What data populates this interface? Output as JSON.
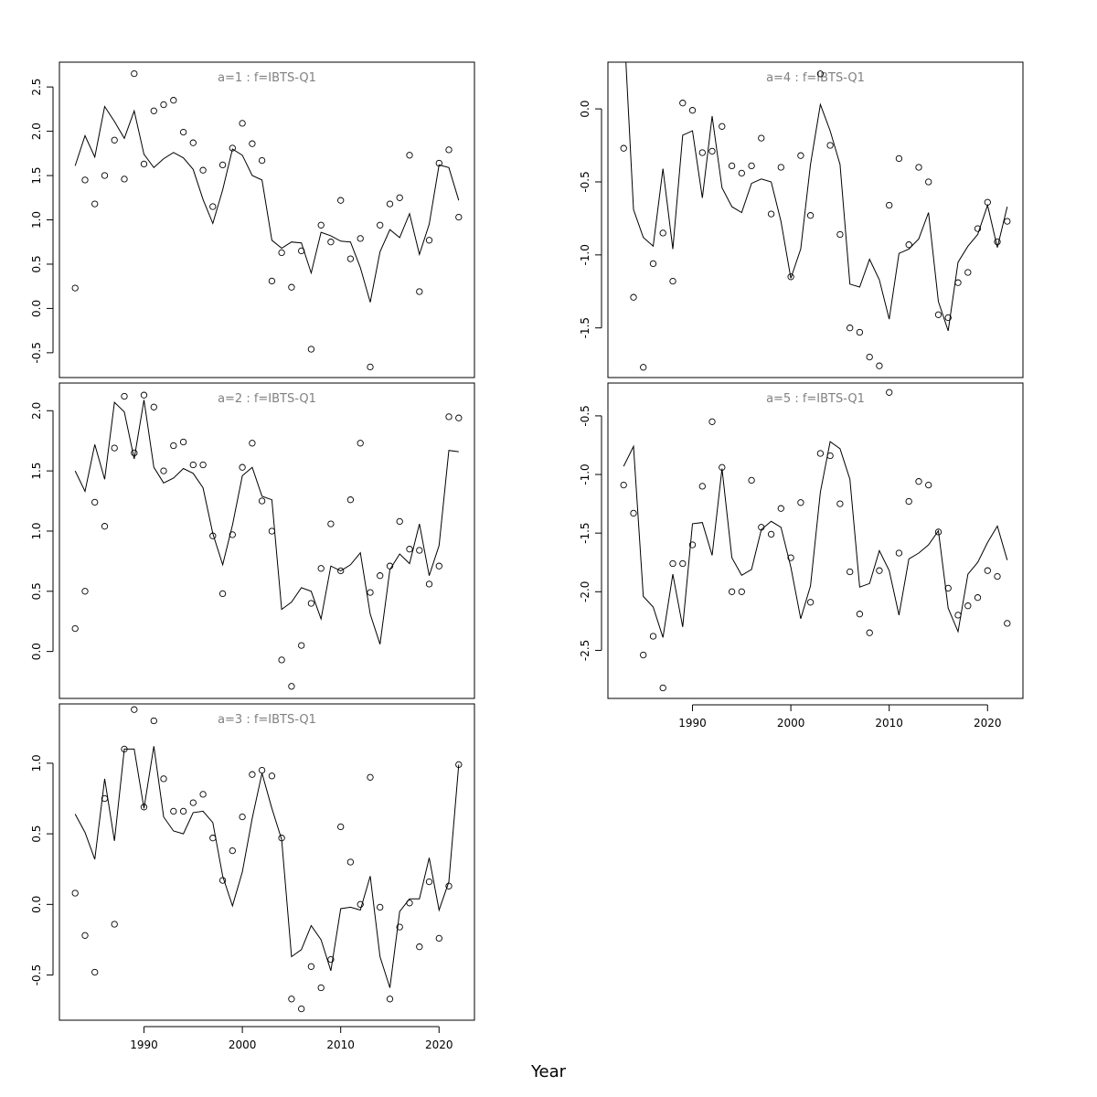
{
  "xlabel": "Year",
  "chart_data": [
    {
      "type": "scatter",
      "title": "a=1  :  f=IBTS-Q1",
      "xlim": [
        1981.4,
        2023.6
      ],
      "ylim": [
        -0.78,
        2.78
      ],
      "yticks": [
        -0.5,
        0.0,
        0.5,
        1.0,
        1.5,
        2.0,
        2.5
      ],
      "ytick_labels": [
        "-0.5",
        "0.0",
        "0.5",
        "1.0",
        "1.5",
        "2.0",
        "2.5"
      ],
      "xticks": [],
      "series": [
        {
          "kind": "points",
          "x": [
            1983,
            1984,
            1985,
            1986,
            1987,
            1988,
            1989,
            1990,
            1991,
            1992,
            1993,
            1994,
            1995,
            1996,
            1997,
            1998,
            1999,
            2000,
            2001,
            2002,
            2003,
            2004,
            2005,
            2006,
            2007,
            2008,
            2009,
            2010,
            2011,
            2012,
            2013,
            2014,
            2015,
            2016,
            2017,
            2018,
            2019,
            2020,
            2021,
            2022
          ],
          "y": [
            0.23,
            1.45,
            1.18,
            1.5,
            1.9,
            1.46,
            2.65,
            1.63,
            2.23,
            2.3,
            2.35,
            1.99,
            1.87,
            1.56,
            1.15,
            1.62,
            1.81,
            2.09,
            1.86,
            1.67,
            0.31,
            0.63,
            0.24,
            0.65,
            -0.46,
            0.94,
            0.75,
            1.22,
            0.56,
            0.79,
            -0.66,
            0.94,
            1.18,
            1.25,
            1.73,
            0.19,
            0.77,
            1.64,
            1.79,
            1.03
          ]
        },
        {
          "kind": "line",
          "x": [
            1983,
            1984,
            1985,
            1986,
            1987,
            1988,
            1989,
            1990,
            1991,
            1992,
            1993,
            1994,
            1995,
            1996,
            1997,
            1998,
            1999,
            2000,
            2001,
            2002,
            2003,
            2004,
            2005,
            2006,
            2007,
            2008,
            2009,
            2010,
            2011,
            2012,
            2013,
            2014,
            2015,
            2016,
            2017,
            2018,
            2019,
            2020,
            2021,
            2022
          ],
          "y": [
            1.61,
            1.95,
            1.71,
            2.28,
            2.11,
            1.92,
            2.23,
            1.74,
            1.59,
            1.69,
            1.76,
            1.7,
            1.57,
            1.23,
            0.96,
            1.34,
            1.8,
            1.73,
            1.5,
            1.45,
            0.77,
            0.68,
            0.75,
            0.74,
            0.4,
            0.86,
            0.82,
            0.76,
            0.75,
            0.46,
            0.07,
            0.64,
            0.89,
            0.8,
            1.07,
            0.61,
            0.95,
            1.62,
            1.59,
            1.22
          ]
        }
      ]
    },
    {
      "type": "scatter",
      "title": "a=2  :  f=IBTS-Q1",
      "xlim": [
        1981.4,
        2023.6
      ],
      "ylim": [
        -0.39,
        2.23
      ],
      "yticks": [
        0.0,
        0.5,
        1.0,
        1.5,
        2.0
      ],
      "ytick_labels": [
        "0.0",
        "0.5",
        "1.0",
        "1.5",
        "2.0"
      ],
      "xticks": [],
      "series": [
        {
          "kind": "points",
          "x": [
            1983,
            1984,
            1985,
            1986,
            1987,
            1988,
            1989,
            1990,
            1991,
            1992,
            1993,
            1994,
            1995,
            1996,
            1997,
            1998,
            1999,
            2000,
            2001,
            2002,
            2003,
            2004,
            2005,
            2006,
            2007,
            2008,
            2009,
            2010,
            2011,
            2012,
            2013,
            2014,
            2015,
            2016,
            2017,
            2018,
            2019,
            2020,
            2021,
            2022
          ],
          "y": [
            0.19,
            0.5,
            1.24,
            1.04,
            1.69,
            2.12,
            1.65,
            2.13,
            2.03,
            1.5,
            1.71,
            1.74,
            1.55,
            1.55,
            0.96,
            0.48,
            0.97,
            1.53,
            1.73,
            1.25,
            1.0,
            -0.07,
            -0.29,
            0.05,
            0.4,
            0.69,
            1.06,
            0.67,
            1.26,
            1.73,
            0.49,
            0.63,
            0.71,
            1.08,
            0.85,
            0.84,
            0.56,
            0.71,
            1.95,
            1.94
          ]
        },
        {
          "kind": "line",
          "x": [
            1983,
            1984,
            1985,
            1986,
            1987,
            1988,
            1989,
            1990,
            1991,
            1992,
            1993,
            1994,
            1995,
            1996,
            1997,
            1998,
            1999,
            2000,
            2001,
            2002,
            2003,
            2004,
            2005,
            2006,
            2007,
            2008,
            2009,
            2010,
            2011,
            2012,
            2013,
            2014,
            2015,
            2016,
            2017,
            2018,
            2019,
            2020,
            2021,
            2022
          ],
          "y": [
            1.5,
            1.33,
            1.72,
            1.43,
            2.07,
            1.99,
            1.6,
            2.09,
            1.53,
            1.4,
            1.44,
            1.52,
            1.48,
            1.36,
            0.98,
            0.72,
            1.05,
            1.46,
            1.53,
            1.29,
            1.26,
            0.35,
            0.41,
            0.53,
            0.5,
            0.27,
            0.71,
            0.67,
            0.72,
            0.82,
            0.31,
            0.06,
            0.68,
            0.81,
            0.73,
            1.06,
            0.63,
            0.88,
            1.67,
            1.66
          ]
        }
      ]
    },
    {
      "type": "scatter",
      "title": "a=3  :  f=IBTS-Q1",
      "xlim": [
        1981.4,
        2023.6
      ],
      "ylim": [
        -0.82,
        1.42
      ],
      "yticks": [
        -0.5,
        0.0,
        0.5,
        1.0
      ],
      "ytick_labels": [
        "-0.5",
        "0.0",
        "0.5",
        "1.0"
      ],
      "xticks": [
        1990,
        2000,
        2010,
        2020
      ],
      "xtick_labels": [
        "1990",
        "2000",
        "2010",
        "2020"
      ],
      "series": [
        {
          "kind": "points",
          "x": [
            1983,
            1984,
            1985,
            1986,
            1987,
            1988,
            1989,
            1990,
            1991,
            1992,
            1993,
            1994,
            1995,
            1996,
            1997,
            1998,
            1999,
            2000,
            2001,
            2002,
            2003,
            2004,
            2005,
            2006,
            2007,
            2008,
            2009,
            2010,
            2011,
            2012,
            2013,
            2014,
            2015,
            2016,
            2017,
            2018,
            2019,
            2020,
            2021,
            2022
          ],
          "y": [
            0.08,
            -0.22,
            -0.48,
            0.75,
            -0.14,
            1.1,
            1.38,
            0.69,
            1.3,
            0.89,
            0.66,
            0.66,
            0.72,
            0.78,
            0.47,
            0.17,
            0.38,
            0.62,
            0.92,
            0.95,
            0.91,
            0.47,
            -0.67,
            -0.74,
            -0.44,
            -0.59,
            -0.39,
            0.55,
            0.3,
            0.0,
            0.9,
            -0.02,
            -0.67,
            -0.16,
            0.01,
            -0.3,
            0.16,
            -0.24,
            0.13,
            0.99
          ]
        },
        {
          "kind": "line",
          "x": [
            1983,
            1984,
            1985,
            1986,
            1987,
            1988,
            1989,
            1990,
            1991,
            1992,
            1993,
            1994,
            1995,
            1996,
            1997,
            1998,
            1999,
            2000,
            2001,
            2002,
            2003,
            2004,
            2005,
            2006,
            2007,
            2008,
            2009,
            2010,
            2011,
            2012,
            2013,
            2014,
            2015,
            2016,
            2017,
            2018,
            2019,
            2020,
            2021,
            2022
          ],
          "y": [
            0.64,
            0.51,
            0.32,
            0.89,
            0.45,
            1.1,
            1.1,
            0.68,
            1.12,
            0.62,
            0.52,
            0.5,
            0.65,
            0.66,
            0.58,
            0.2,
            -0.01,
            0.23,
            0.61,
            0.93,
            0.68,
            0.46,
            -0.37,
            -0.32,
            -0.15,
            -0.25,
            -0.47,
            -0.03,
            -0.02,
            -0.04,
            0.2,
            -0.37,
            -0.59,
            -0.05,
            0.04,
            0.04,
            0.33,
            -0.04,
            0.16,
            0.99
          ]
        }
      ]
    },
    {
      "type": "scatter",
      "title": "a=4  :  f=IBTS-Q1",
      "xlim": [
        1981.4,
        2023.6
      ],
      "ylim": [
        -1.84,
        0.32
      ],
      "yticks": [
        -1.5,
        -1.0,
        -0.5,
        0.0
      ],
      "ytick_labels": [
        "-1.5",
        "-1.0",
        "-0.5",
        "0.0"
      ],
      "xticks": [],
      "series": [
        {
          "kind": "points",
          "x": [
            1983,
            1984,
            1985,
            1986,
            1987,
            1988,
            1989,
            1990,
            1991,
            1992,
            1993,
            1994,
            1995,
            1996,
            1997,
            1998,
            1999,
            2000,
            2001,
            2002,
            2003,
            2004,
            2005,
            2006,
            2007,
            2008,
            2009,
            2010,
            2011,
            2012,
            2013,
            2014,
            2015,
            2016,
            2017,
            2018,
            2019,
            2020,
            2021,
            2022
          ],
          "y": [
            -0.27,
            -1.29,
            -1.77,
            -1.06,
            -0.85,
            -1.18,
            0.04,
            -0.01,
            -0.3,
            -0.29,
            -0.12,
            -0.39,
            -0.44,
            -0.39,
            -0.2,
            -0.72,
            -0.4,
            -1.15,
            -0.32,
            -0.73,
            0.24,
            -0.25,
            -0.86,
            -1.5,
            -1.53,
            -1.7,
            -1.76,
            -0.66,
            -0.34,
            -0.93,
            -0.4,
            -0.5,
            -1.41,
            -1.43,
            -1.19,
            -1.12,
            -0.82,
            -0.64,
            -0.91,
            -0.77
          ]
        },
        {
          "kind": "line",
          "x": [
            1983,
            1984,
            1985,
            1986,
            1987,
            1988,
            1989,
            1990,
            1991,
            1992,
            1993,
            1994,
            1995,
            1996,
            1997,
            1998,
            1999,
            2000,
            2001,
            2002,
            2003,
            2004,
            2005,
            2006,
            2007,
            2008,
            2009,
            2010,
            2011,
            2012,
            2013,
            2014,
            2015,
            2016,
            2017,
            2018,
            2019,
            2020,
            2021,
            2022
          ],
          "y": [
            0.62,
            -0.69,
            -0.88,
            -0.94,
            -0.41,
            -0.96,
            -0.18,
            -0.15,
            -0.61,
            -0.05,
            -0.54,
            -0.67,
            -0.71,
            -0.51,
            -0.48,
            -0.5,
            -0.77,
            -1.16,
            -0.96,
            -0.38,
            0.03,
            -0.15,
            -0.38,
            -1.2,
            -1.22,
            -1.03,
            -1.17,
            -1.44,
            -0.99,
            -0.96,
            -0.89,
            -0.71,
            -1.32,
            -1.52,
            -1.05,
            -0.94,
            -0.86,
            -0.66,
            -0.95,
            -0.67
          ]
        }
      ]
    },
    {
      "type": "scatter",
      "title": "a=5  :  f=IBTS-Q1",
      "xlim": [
        1981.4,
        2023.6
      ],
      "ylim": [
        -2.91,
        -0.22
      ],
      "yticks": [
        -2.5,
        -2.0,
        -1.5,
        -1.0,
        -0.5
      ],
      "ytick_labels": [
        "-2.5",
        "-2.0",
        "-1.5",
        "-1.0",
        "-0.5"
      ],
      "xticks": [
        1990,
        2000,
        2010,
        2020
      ],
      "xtick_labels": [
        "1990",
        "2000",
        "2010",
        "2020"
      ],
      "series": [
        {
          "kind": "points",
          "x": [
            1983,
            1984,
            1985,
            1986,
            1987,
            1988,
            1989,
            1990,
            1991,
            1992,
            1993,
            1994,
            1995,
            1996,
            1997,
            1998,
            1999,
            2000,
            2001,
            2002,
            2003,
            2004,
            2005,
            2006,
            2007,
            2008,
            2009,
            2010,
            2011,
            2012,
            2013,
            2014,
            2015,
            2016,
            2017,
            2018,
            2019,
            2020,
            2021,
            2022
          ],
          "y": [
            -1.09,
            -1.33,
            -2.54,
            -2.38,
            -2.82,
            -1.76,
            -1.76,
            -1.6,
            -1.1,
            -0.55,
            -0.94,
            -2.0,
            -2.0,
            -1.05,
            -1.45,
            -1.51,
            -1.29,
            -1.71,
            -1.24,
            -2.09,
            -0.82,
            -0.84,
            -1.25,
            -1.83,
            -2.19,
            -2.35,
            -1.82,
            -0.3,
            -1.67,
            -1.23,
            -1.06,
            -1.09,
            -1.49,
            -1.97,
            -2.2,
            -2.12,
            -2.05,
            -1.82,
            -1.87,
            -2.27
          ]
        },
        {
          "kind": "line",
          "x": [
            1983,
            1984,
            1985,
            1986,
            1987,
            1988,
            1989,
            1990,
            1991,
            1992,
            1993,
            1994,
            1995,
            1996,
            1997,
            1998,
            1999,
            2000,
            2001,
            2002,
            2003,
            2004,
            2005,
            2006,
            2007,
            2008,
            2009,
            2010,
            2011,
            2012,
            2013,
            2014,
            2015,
            2016,
            2017,
            2018,
            2019,
            2020,
            2021,
            2022
          ],
          "y": [
            -0.93,
            -0.76,
            -2.04,
            -2.13,
            -2.39,
            -1.85,
            -2.3,
            -1.42,
            -1.41,
            -1.69,
            -0.95,
            -1.71,
            -1.86,
            -1.81,
            -1.47,
            -1.4,
            -1.45,
            -1.79,
            -2.23,
            -1.95,
            -1.15,
            -0.72,
            -0.78,
            -1.04,
            -1.96,
            -1.93,
            -1.65,
            -1.82,
            -2.2,
            -1.72,
            -1.67,
            -1.6,
            -1.48,
            -2.14,
            -2.34,
            -1.85,
            -1.75,
            -1.58,
            -1.44,
            -1.73
          ]
        }
      ]
    }
  ]
}
